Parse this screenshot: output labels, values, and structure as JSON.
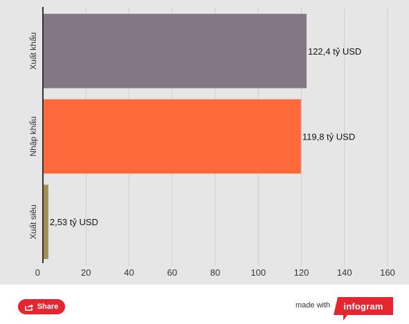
{
  "chart_data": {
    "type": "bar",
    "orientation": "horizontal",
    "categories": [
      "Xuất khẩu",
      "Nhập khẩu",
      "Xuất siêu"
    ],
    "values": [
      122.4,
      119.8,
      2.53
    ],
    "value_labels": [
      "122,4 tỷ USD",
      "119,8 tỷ USD",
      "2,53 tỷ USD"
    ],
    "colors": [
      "#847784",
      "#ff6a3d",
      "#a68f52"
    ],
    "xlim": [
      0,
      160
    ],
    "x_ticks": [
      0,
      20,
      40,
      60,
      80,
      100,
      120,
      140,
      160
    ],
    "grid": true,
    "title": "",
    "xlabel": "",
    "ylabel": ""
  },
  "footer": {
    "share_label": "Share",
    "made_with_label": "made with",
    "brand_label": "infogram",
    "brand_color": "#e3262f"
  }
}
